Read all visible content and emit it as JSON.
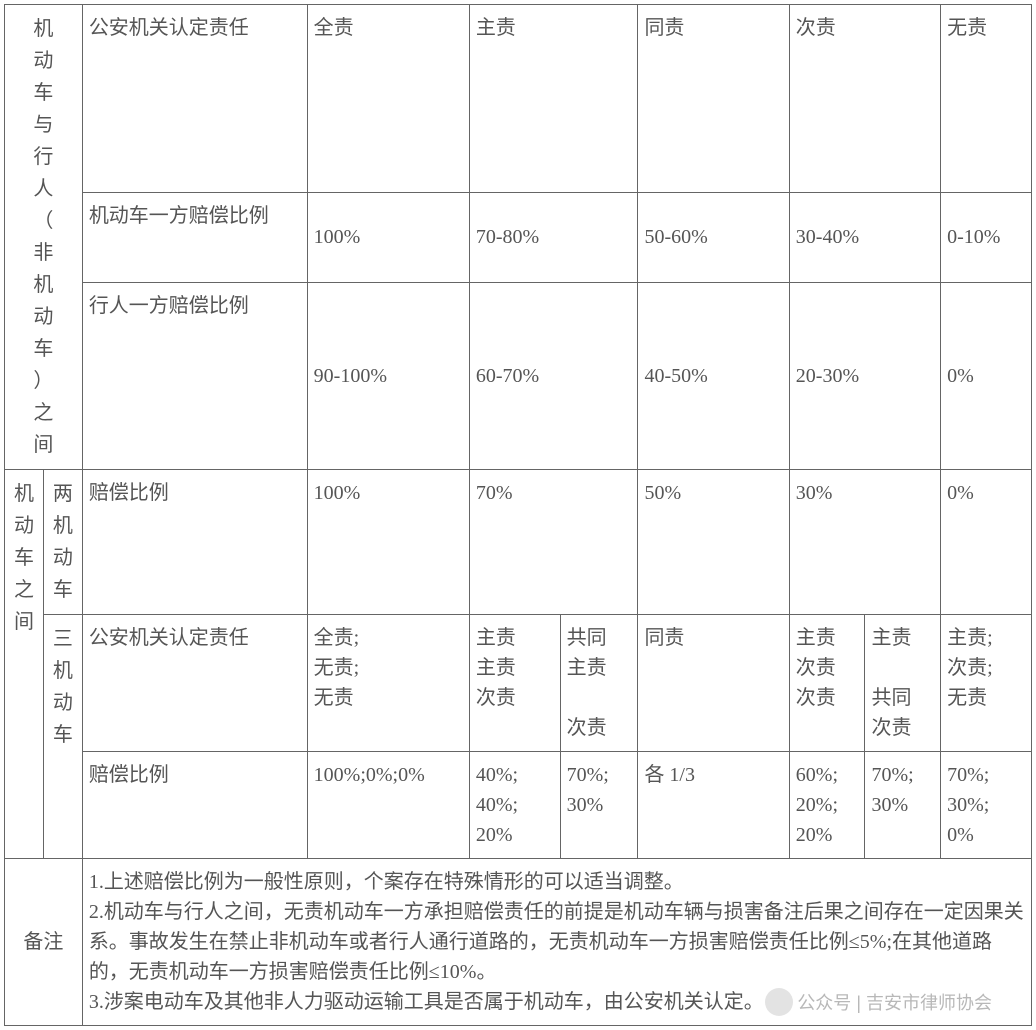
{
  "section1": {
    "rowspan_label": "机动车与行人（非机动车）之间",
    "rows": [
      {
        "label": "公安机关认定责任",
        "cells": [
          "全责",
          "主责",
          "同责",
          "次责",
          "无责"
        ]
      },
      {
        "label": "机动车一方赔偿比例",
        "cells": [
          "100%",
          "70-80%",
          "50-60%",
          "30-40%",
          "0-10%"
        ]
      },
      {
        "label": "行人一方赔偿比例",
        "cells": [
          "90-100%",
          "60-70%",
          "40-50%",
          "20-30%",
          "0%"
        ]
      }
    ]
  },
  "section2": {
    "outer_label": "机动车之间",
    "two_label": "两机动车",
    "two_row": {
      "label": "赔偿比例",
      "cells": [
        "100%",
        "70%",
        "50%",
        "30%",
        "0%"
      ]
    },
    "three_label": "三机动车",
    "three_row1": {
      "label": "公安机关认定责任",
      "c1": "全责;\n无责;\n无责",
      "c2": "主责\n主责\n次责",
      "c3": "共同\n主责\n\n次责",
      "c4": "同责",
      "c5": "主责\n次责\n次责",
      "c6": "主责\n\n共同\n次责",
      "c7": "主责;\n次责;\n无责"
    },
    "three_row2": {
      "label": "赔偿比例",
      "c1": "100%;0%;0%",
      "c2": "40%;\n40%;\n20%",
      "c3": "70%;\n30%",
      "c4": "各 1/3",
      "c5": "60%;\n20%;\n20%",
      "c6": "70%;\n30%",
      "c7": "70%;\n30%;\n0%"
    }
  },
  "notes": {
    "label": "备注",
    "text": "1.上述赔偿比例为一般性原则，个案存在特殊情形的可以适当调整。\n2.机动车与行人之间，无责机动车一方承担赔偿责任的前提是机动车辆与损害备注后果之间存在一定因果关系。事故发生在禁止非机动车或者行人通行道路的，无责机动车一方损害赔偿责任比例≤5%;在其他道路的，无责机动车一方损害赔偿责任比例≤10%。\n3.涉案电动车及其他非人力驱动运输工具是否属于机动车，由公安机关认定。"
  },
  "watermark": "公众号 | 吉安市律师协会",
  "style": {
    "border_color": "#656565",
    "text_color": "#555555",
    "font_size_pt": 15,
    "background": "#ffffff"
  }
}
